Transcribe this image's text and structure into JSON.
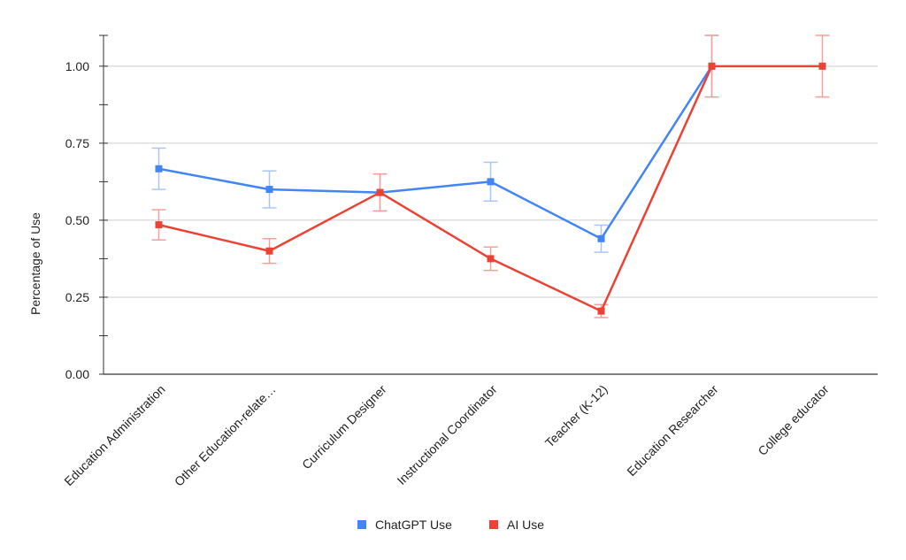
{
  "chart_data": {
    "type": "line",
    "title": "",
    "xlabel": "",
    "ylabel": "Percentage of Use",
    "ylim": [
      0,
      1.1
    ],
    "yticks": [
      "0.00",
      "0.25",
      "0.50",
      "0.75",
      "1.00"
    ],
    "grid": true,
    "legend_position": "bottom",
    "categories": [
      "Education Administration",
      "Other Education-relate…",
      "Curriculum Designer",
      "Instructional Coordinator",
      "Teacher (K-12)",
      "Education Researcher",
      "College educator"
    ],
    "series": [
      {
        "name": "ChatGPT Use",
        "color": "#4285f4",
        "values": [
          0.667,
          0.6,
          0.59,
          0.625,
          0.44,
          1.0,
          null
        ],
        "error": [
          0.067,
          0.06,
          0.06,
          0.063,
          0.044,
          0.1,
          null
        ]
      },
      {
        "name": "AI Use",
        "color": "#ea4335",
        "values": [
          0.485,
          0.4,
          0.59,
          0.375,
          0.205,
          1.0,
          1.0
        ],
        "error": [
          0.049,
          0.04,
          0.06,
          0.038,
          0.021,
          0.1,
          0.1
        ]
      }
    ]
  }
}
